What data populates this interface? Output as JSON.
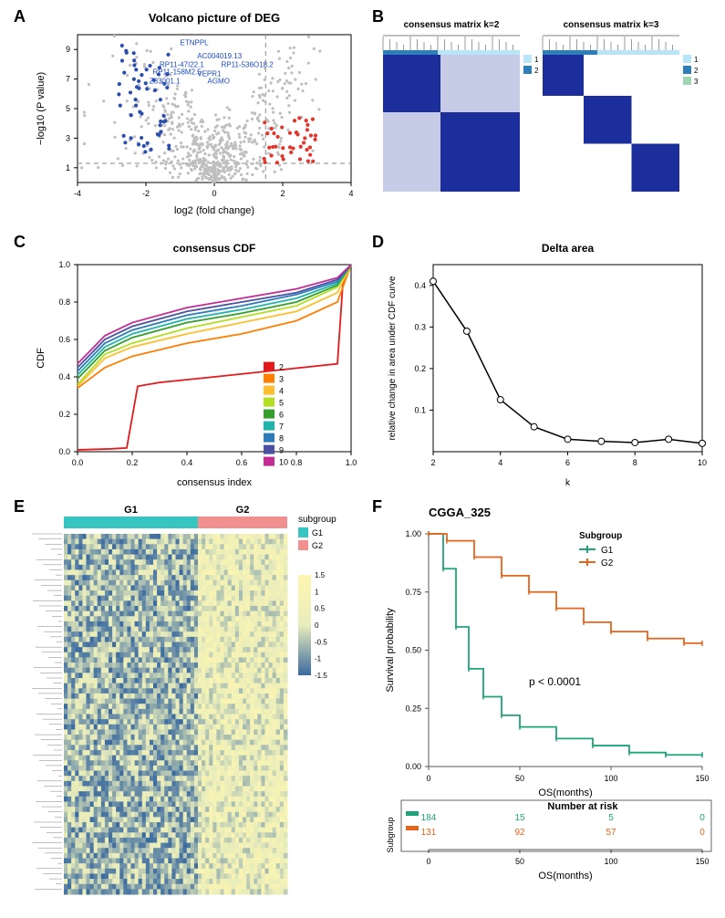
{
  "panelA": {
    "label": "A",
    "title": "Volcano picture of DEG",
    "xlabel": "log2 (fold change)",
    "ylabel": "−log10 (P value)",
    "xlim": [
      -4,
      4
    ],
    "ylim": [
      0,
      10
    ],
    "xticks": [
      -4,
      -2,
      0,
      2,
      4
    ],
    "yticks": [
      1,
      3,
      5,
      7,
      9
    ],
    "h_dash_y": 1.3,
    "v_dash_x": 1.5,
    "gene_labels": [
      "ETNPPL",
      "AC004019.13",
      "RP11-47I22.1",
      "RP11-536O18.2",
      "RP11-158M2.5",
      "VEPR1",
      "Z83001.1",
      "AGMO"
    ],
    "bg_color": "#ffffff",
    "axis_color": "#000000",
    "grey": "#bfbfbf",
    "blue": "#2b4fb0",
    "red": "#e4352b",
    "label_blue": "#1a49c9",
    "title_fontsize": 13,
    "label_fontsize": 11,
    "tick_fontsize": 9,
    "gene_fontsize": 8
  },
  "panelB": {
    "label": "B",
    "matrices": [
      {
        "title": "consensus matrix k=2",
        "legend": [
          "1",
          "2"
        ],
        "legend_colors": [
          "#b9e5f9",
          "#2c7fb8"
        ]
      },
      {
        "title": "consensus matrix k=3",
        "legend": [
          "1",
          "2",
          "3"
        ],
        "legend_colors": [
          "#b9e5f9",
          "#2c7fb8",
          "#9fd6b4"
        ]
      }
    ],
    "heat_low": "#ffffff",
    "heat_high": "#1b2e9c",
    "title_fontsize": 10
  },
  "panelC": {
    "label": "C",
    "title": "consensus CDF",
    "xlabel": "consensus index",
    "ylabel": "CDF",
    "xlim": [
      0,
      1
    ],
    "ylim": [
      0,
      1
    ],
    "xticks": [
      0,
      0.2,
      0.4,
      0.6,
      0.8,
      1.0
    ],
    "yticks": [
      0,
      0.2,
      0.4,
      0.6,
      0.8,
      1.0
    ],
    "legend_items": [
      "2",
      "3",
      "4",
      "5",
      "6",
      "7",
      "8",
      "9",
      "10"
    ],
    "legend_colors": [
      "#e31a1c",
      "#ff7f00",
      "#fdbf2d",
      "#b2df22",
      "#33a02c",
      "#1fb5aa",
      "#2b7bba",
      "#4a51a3",
      "#c52b94"
    ],
    "title_fontsize": 12,
    "label_fontsize": 11,
    "tick_fontsize": 9,
    "curves": {
      "2": [
        [
          0,
          0.01
        ],
        [
          0.12,
          0.015
        ],
        [
          0.18,
          0.02
        ],
        [
          0.22,
          0.35
        ],
        [
          0.3,
          0.37
        ],
        [
          0.5,
          0.4
        ],
        [
          0.95,
          0.47
        ],
        [
          0.97,
          0.9
        ],
        [
          1,
          1
        ]
      ],
      "3": [
        [
          0,
          0.34
        ],
        [
          0.1,
          0.45
        ],
        [
          0.2,
          0.51
        ],
        [
          0.4,
          0.58
        ],
        [
          0.6,
          0.63
        ],
        [
          0.8,
          0.7
        ],
        [
          0.95,
          0.8
        ],
        [
          1,
          1
        ]
      ],
      "4": [
        [
          0,
          0.35
        ],
        [
          0.1,
          0.5
        ],
        [
          0.2,
          0.56
        ],
        [
          0.4,
          0.63
        ],
        [
          0.6,
          0.69
        ],
        [
          0.8,
          0.75
        ],
        [
          0.95,
          0.85
        ],
        [
          1,
          1
        ]
      ],
      "5": [
        [
          0,
          0.36
        ],
        [
          0.1,
          0.52
        ],
        [
          0.2,
          0.58
        ],
        [
          0.4,
          0.66
        ],
        [
          0.6,
          0.72
        ],
        [
          0.8,
          0.78
        ],
        [
          0.95,
          0.88
        ],
        [
          1,
          1
        ]
      ],
      "6": [
        [
          0,
          0.39
        ],
        [
          0.1,
          0.54
        ],
        [
          0.2,
          0.61
        ],
        [
          0.4,
          0.69
        ],
        [
          0.6,
          0.74
        ],
        [
          0.8,
          0.8
        ],
        [
          0.95,
          0.89
        ],
        [
          1,
          1
        ]
      ],
      "7": [
        [
          0,
          0.41
        ],
        [
          0.1,
          0.56
        ],
        [
          0.2,
          0.63
        ],
        [
          0.4,
          0.71
        ],
        [
          0.6,
          0.76
        ],
        [
          0.8,
          0.82
        ],
        [
          0.95,
          0.9
        ],
        [
          1,
          1
        ]
      ],
      "8": [
        [
          0,
          0.43
        ],
        [
          0.1,
          0.58
        ],
        [
          0.2,
          0.65
        ],
        [
          0.4,
          0.73
        ],
        [
          0.6,
          0.78
        ],
        [
          0.8,
          0.84
        ],
        [
          0.95,
          0.91
        ],
        [
          1,
          1
        ]
      ],
      "9": [
        [
          0,
          0.45
        ],
        [
          0.1,
          0.6
        ],
        [
          0.2,
          0.67
        ],
        [
          0.4,
          0.75
        ],
        [
          0.6,
          0.8
        ],
        [
          0.8,
          0.85
        ],
        [
          0.95,
          0.92
        ],
        [
          1,
          1
        ]
      ],
      "10": [
        [
          0,
          0.47
        ],
        [
          0.1,
          0.62
        ],
        [
          0.2,
          0.69
        ],
        [
          0.4,
          0.77
        ],
        [
          0.6,
          0.82
        ],
        [
          0.8,
          0.87
        ],
        [
          0.95,
          0.93
        ],
        [
          1,
          1
        ]
      ]
    }
  },
  "panelD": {
    "label": "D",
    "title": "Delta area",
    "xlabel": "k",
    "ylabel": "relative change in area under CDF curve",
    "xlim": [
      2,
      10
    ],
    "ylim": [
      0,
      0.45
    ],
    "xticks": [
      2,
      4,
      6,
      8,
      10
    ],
    "yticks": [
      0.1,
      0.2,
      0.3,
      0.4
    ],
    "points": [
      [
        2,
        0.41
      ],
      [
        3,
        0.29
      ],
      [
        4,
        0.125
      ],
      [
        5,
        0.06
      ],
      [
        6,
        0.03
      ],
      [
        7,
        0.025
      ],
      [
        8,
        0.022
      ],
      [
        9,
        0.03
      ],
      [
        10,
        0.02
      ]
    ],
    "line_color": "#000000",
    "marker": "circle",
    "marker_fill": "#ffffff",
    "marker_stroke": "#000000",
    "title_fontsize": 12,
    "label_fontsize": 10,
    "tick_fontsize": 9
  },
  "panelE": {
    "label": "E",
    "group_labels": [
      "G1",
      "G2"
    ],
    "group_colors": [
      "#36c5c0",
      "#f28f8f"
    ],
    "legend_title": "subgroup",
    "scale_title": "",
    "scale_min": -1.5,
    "scale_max": 1.5,
    "scale_ticks": [
      -1.5,
      -1,
      -0.5,
      0,
      0.5,
      1,
      1.5
    ],
    "heat_low": "#3a6aa0",
    "heat_mid": "#e9edbb",
    "heat_high": "#fef6b0",
    "label_fontsize": 11,
    "legend_fontsize": 10
  },
  "panelF": {
    "label": "F",
    "title": "CGGA_325",
    "xlabel": "OS(months)",
    "ylabel": "Survival probability",
    "xlim": [
      0,
      150
    ],
    "ylim": [
      0,
      1
    ],
    "xticks": [
      0,
      50,
      100,
      150
    ],
    "yticks": [
      0,
      0.25,
      0.5,
      0.75,
      1.0
    ],
    "legend_title": "Subgroup",
    "series": [
      {
        "name": "G1",
        "color": "#1fa37a"
      },
      {
        "name": "G2",
        "color": "#e8641b"
      }
    ],
    "pvalue": "p < 0.0001",
    "g1": [
      [
        0,
        1.0
      ],
      [
        8,
        0.85
      ],
      [
        15,
        0.6
      ],
      [
        22,
        0.42
      ],
      [
        30,
        0.3
      ],
      [
        40,
        0.22
      ],
      [
        50,
        0.17
      ],
      [
        70,
        0.12
      ],
      [
        90,
        0.09
      ],
      [
        110,
        0.06
      ],
      [
        130,
        0.05
      ],
      [
        150,
        0.05
      ]
    ],
    "g2": [
      [
        0,
        1.0
      ],
      [
        10,
        0.97
      ],
      [
        25,
        0.9
      ],
      [
        40,
        0.82
      ],
      [
        55,
        0.75
      ],
      [
        70,
        0.68
      ],
      [
        85,
        0.62
      ],
      [
        100,
        0.58
      ],
      [
        120,
        0.55
      ],
      [
        140,
        0.53
      ],
      [
        150,
        0.53
      ]
    ],
    "risk_title": "Number at risk",
    "risk_xlabel": "OS(months)",
    "risk_table": {
      "breaks": [
        0,
        50,
        100,
        150
      ],
      "rows": [
        {
          "name": "G1",
          "color": "#1fa37a",
          "counts": [
            184,
            15,
            5,
            0
          ]
        },
        {
          "name": "G2",
          "color": "#e8641b",
          "counts": [
            131,
            92,
            57,
            0
          ]
        }
      ]
    },
    "title_fontsize": 13,
    "label_fontsize": 11,
    "tick_fontsize": 9,
    "legend_fontsize": 10,
    "pvalue_fontsize": 12
  }
}
